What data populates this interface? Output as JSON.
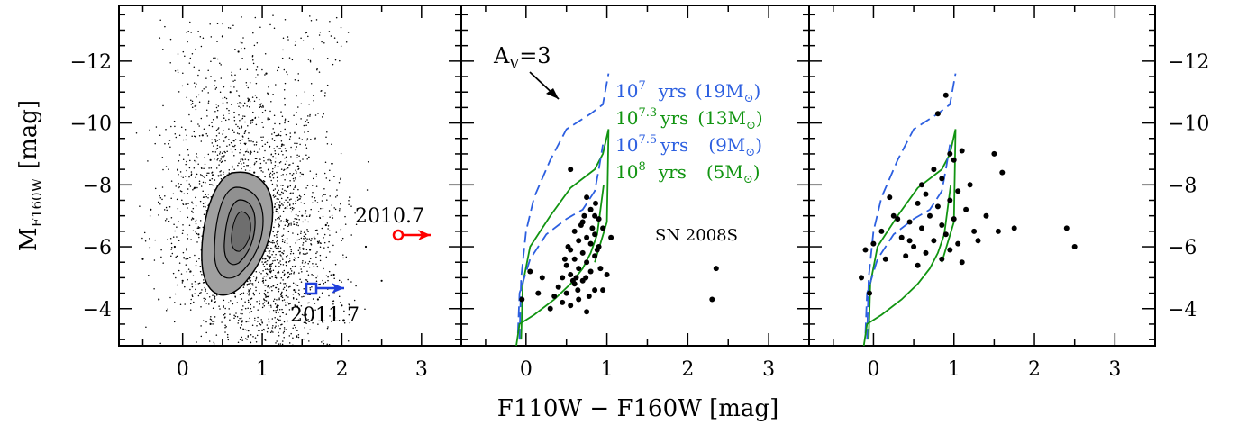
{
  "figure": {
    "xlabel": "F110W − F160W [mag]",
    "ylabel_main": "M",
    "ylabel_sub": "F160W",
    "ylabel_unit": "[mag]"
  },
  "chart_data": [
    {
      "type": "scatter",
      "panel": "left",
      "xlim": [
        -0.8,
        3.5
      ],
      "ylim": [
        -2.8,
        -13.8
      ],
      "yticks": [
        -4,
        -6,
        -8,
        -10,
        -12
      ],
      "xticks": [
        0,
        1,
        2,
        3
      ],
      "ytick_labels_side": "left",
      "series": [
        {
          "kind": "field-stars-density",
          "points": [
            [
              0.6,
              -6.0
            ],
            [
              0.7,
              -6.5
            ],
            [
              0.8,
              -7.0
            ],
            [
              0.9,
              -6.2
            ],
            [
              1.0,
              -5.8
            ],
            [
              0.75,
              -5.5
            ],
            [
              0.85,
              -4.9
            ],
            [
              1.1,
              -5.2
            ],
            [
              0.95,
              -7.5
            ],
            [
              0.65,
              -4.5
            ],
            [
              0.5,
              -5.0
            ],
            [
              0.55,
              -7.8
            ],
            [
              0.45,
              -6.8
            ],
            [
              1.2,
              -6.5
            ],
            [
              1.3,
              -5.5
            ],
            [
              0.4,
              -4.2
            ],
            [
              0.3,
              -5.4
            ],
            [
              1.4,
              -4.6
            ],
            [
              0.2,
              -6.4
            ],
            [
              1.5,
              -7.0
            ],
            [
              0.85,
              -9.0
            ],
            [
              0.88,
              -10.1
            ],
            [
              0.9,
              -8.4
            ],
            [
              0.35,
              -8.8
            ],
            [
              1.6,
              -5.9
            ],
            [
              0.1,
              -5.2
            ],
            [
              1.7,
              -4.3
            ],
            [
              0.0,
              -4.9
            ],
            [
              1.8,
              -6.7
            ],
            [
              -0.1,
              -6.0
            ],
            [
              1.9,
              -5.1
            ],
            [
              0.25,
              -9.6
            ],
            [
              1.25,
              -9.3
            ],
            [
              0.6,
              -11.0
            ],
            [
              1.05,
              -11.6
            ],
            [
              0.5,
              -12.8
            ],
            [
              0.7,
              -12.3
            ],
            [
              2.1,
              -7.6
            ],
            [
              2.3,
              -6.0
            ],
            [
              2.5,
              -4.9
            ],
            [
              -0.3,
              -4.3
            ],
            [
              -0.5,
              -5.6
            ],
            [
              -0.4,
              -7.2
            ],
            [
              1.45,
              -8.6
            ],
            [
              0.15,
              -7.9
            ],
            [
              0.75,
              -3.6
            ],
            [
              1.0,
              -3.3
            ],
            [
              0.35,
              -3.5
            ],
            [
              1.55,
              -3.8
            ],
            [
              2.0,
              -4.1
            ]
          ]
        },
        {
          "name": "2010.7",
          "color": "#ff0000",
          "marker": "circle-with-arrow",
          "x": 2.78,
          "y": -6.0
        },
        {
          "name": "2011.7",
          "color": "#1f3fdc",
          "marker": "square-with-arrow",
          "x": 1.65,
          "y": -4.2
        }
      ],
      "contours": "filled grey density contours around (0.9, -6.4)",
      "annotations": [
        "2010.7",
        "2011.7"
      ]
    },
    {
      "type": "scatter",
      "panel": "middle",
      "xlim": [
        -0.8,
        3.5
      ],
      "ylim": [
        -2.8,
        -13.8
      ],
      "xticks": [
        0,
        1,
        2,
        3
      ],
      "annotations": {
        "reddening_text": "A",
        "reddening_sub": "V",
        "reddening_value": "=3",
        "target": "SN 2008S"
      },
      "isochrones": [
        {
          "age_base": "10",
          "age_exp": "7",
          "unit": "yrs",
          "mass": "(19M",
          "mass_close": ")",
          "color": "#2c5fe0",
          "dash": true
        },
        {
          "age_base": "10",
          "age_exp": "7.3",
          "unit": "yrs",
          "mass": "(13M",
          "mass_close": ")",
          "color": "#119411",
          "dash": false
        },
        {
          "age_base": "10",
          "age_exp": "7.5",
          "unit": "yrs",
          "mass": "(9M",
          "mass_close": ")",
          "color": "#2c5fe0",
          "dash": true
        },
        {
          "age_base": "10",
          "age_exp": "8",
          "unit": "yrs",
          "mass": "(5M",
          "mass_close": ")",
          "color": "#119411",
          "dash": false
        }
      ],
      "points": [
        [
          0.55,
          -8.5
        ],
        [
          0.75,
          -7.6
        ],
        [
          0.8,
          -7.2
        ],
        [
          0.85,
          -7.0
        ],
        [
          0.9,
          -6.9
        ],
        [
          0.7,
          -6.8
        ],
        [
          0.95,
          -6.6
        ],
        [
          0.6,
          -6.5
        ],
        [
          0.85,
          -6.4
        ],
        [
          0.75,
          -6.3
        ],
        [
          0.65,
          -6.2
        ],
        [
          0.8,
          -6.1
        ],
        [
          0.9,
          -6.0
        ],
        [
          0.55,
          -5.9
        ],
        [
          0.7,
          -5.8
        ],
        [
          0.85,
          -5.7
        ],
        [
          0.6,
          -5.6
        ],
        [
          0.75,
          -5.5
        ],
        [
          0.5,
          -5.4
        ],
        [
          0.65,
          -5.3
        ],
        [
          0.8,
          -5.2
        ],
        [
          0.55,
          -5.1
        ],
        [
          0.45,
          -5.0
        ],
        [
          0.7,
          -4.9
        ],
        [
          0.6,
          -4.8
        ],
        [
          0.4,
          -4.7
        ],
        [
          0.85,
          -4.6
        ],
        [
          0.5,
          -4.5
        ],
        [
          0.35,
          -4.4
        ],
        [
          0.65,
          -4.3
        ],
        [
          0.45,
          -4.2
        ],
        [
          0.55,
          -4.1
        ],
        [
          0.3,
          -4.0
        ],
        [
          0.75,
          -3.9
        ],
        [
          0.95,
          -4.6
        ],
        [
          1.05,
          -6.3
        ],
        [
          1.0,
          -5.1
        ],
        [
          0.72,
          -7.0
        ],
        [
          0.88,
          -5.9
        ],
        [
          0.62,
          -5.0
        ],
        [
          0.78,
          -4.4
        ],
        [
          0.52,
          -6.0
        ],
        [
          0.92,
          -5.3
        ],
        [
          0.68,
          -6.7
        ],
        [
          0.58,
          -4.9
        ],
        [
          0.82,
          -6.6
        ],
        [
          0.48,
          -5.6
        ],
        [
          0.74,
          -5.0
        ],
        [
          0.64,
          -4.6
        ],
        [
          0.86,
          -7.4
        ],
        [
          -0.05,
          -4.3
        ],
        [
          0.05,
          -5.2
        ],
        [
          0.15,
          -4.5
        ],
        [
          0.2,
          -5.0
        ],
        [
          2.35,
          -5.3
        ],
        [
          2.3,
          -4.3
        ]
      ]
    },
    {
      "type": "scatter",
      "panel": "right",
      "xlim": [
        -0.8,
        3.5
      ],
      "ylim": [
        -2.8,
        -13.8
      ],
      "yticks": [
        -4,
        -6,
        -8,
        -10,
        -12
      ],
      "xticks": [
        0,
        1,
        2,
        3
      ],
      "ytick_labels_side": "right",
      "points": [
        [
          0.9,
          -10.9
        ],
        [
          0.8,
          -10.3
        ],
        [
          0.95,
          -9.0
        ],
        [
          1.1,
          -9.1
        ],
        [
          1.0,
          -8.8
        ],
        [
          0.75,
          -8.5
        ],
        [
          0.85,
          -8.2
        ],
        [
          1.2,
          -8.0
        ],
        [
          1.05,
          -7.8
        ],
        [
          0.65,
          -7.7
        ],
        [
          0.95,
          -7.5
        ],
        [
          0.55,
          -7.4
        ],
        [
          0.8,
          -7.3
        ],
        [
          1.15,
          -7.2
        ],
        [
          0.7,
          -7.0
        ],
        [
          1.0,
          -6.9
        ],
        [
          0.45,
          -6.8
        ],
        [
          0.85,
          -6.7
        ],
        [
          0.6,
          -6.6
        ],
        [
          1.25,
          -6.5
        ],
        [
          0.9,
          -6.4
        ],
        [
          0.35,
          -6.3
        ],
        [
          0.75,
          -6.2
        ],
        [
          1.05,
          -6.1
        ],
        [
          0.5,
          -6.0
        ],
        [
          0.95,
          -5.9
        ],
        [
          0.65,
          -5.8
        ],
        [
          0.4,
          -5.7
        ],
        [
          0.85,
          -5.6
        ],
        [
          1.1,
          -5.5
        ],
        [
          0.55,
          -5.4
        ],
        [
          0.3,
          -6.9
        ],
        [
          0.2,
          -7.6
        ],
        [
          0.1,
          -6.5
        ],
        [
          0.0,
          -6.1
        ],
        [
          -0.1,
          -5.9
        ],
        [
          -0.15,
          -5.0
        ],
        [
          -0.05,
          -4.5
        ],
        [
          1.4,
          -7.0
        ],
        [
          1.55,
          -6.5
        ],
        [
          1.6,
          -8.4
        ],
        [
          1.5,
          -9.0
        ],
        [
          1.75,
          -6.6
        ],
        [
          1.3,
          -6.2
        ],
        [
          2.4,
          -6.6
        ],
        [
          2.5,
          -6.0
        ],
        [
          0.25,
          -7.0
        ],
        [
          0.6,
          -8.0
        ],
        [
          0.45,
          -6.2
        ],
        [
          0.15,
          -5.6
        ]
      ],
      "isochrones": "same four isochrones as middle panel, reddening-corrected"
    }
  ],
  "colors": {
    "blue": "#2c5fe0",
    "green": "#119411",
    "red": "#ff0000",
    "contour_fill": "#a0a0a0"
  }
}
